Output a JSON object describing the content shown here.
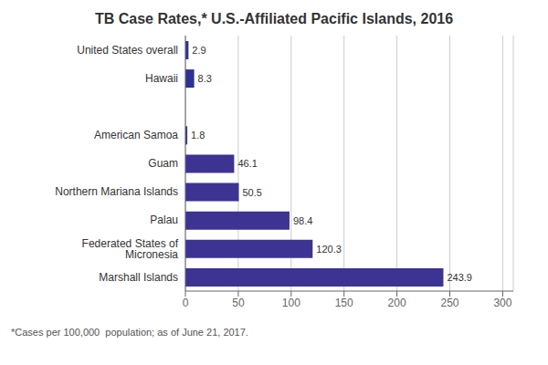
{
  "chart_data": {
    "type": "bar",
    "title": "TB Case Rates,* U.S.-Affiliated Pacific Islands, 2016",
    "orientation": "horizontal",
    "categories": [
      "Marshall Islands",
      "Federated States of Micronesia",
      "Palau",
      "Northern Mariana Islands",
      "Guam",
      "American Samoa",
      null,
      "Hawaii",
      "United States overall"
    ],
    "values": [
      243.9,
      120.3,
      98.4,
      50.5,
      46.1,
      1.8,
      null,
      8.3,
      2.9
    ],
    "colors": [
      "#3d3393",
      "#3d3393",
      "#3d3393",
      "#3d3393",
      "#3d3393",
      "#3d3393",
      "#ffffff",
      "#2e3192",
      "#2e3192"
    ],
    "xlim": [
      0,
      310
    ],
    "xticks": [
      0,
      50,
      100,
      150,
      200,
      250,
      300
    ],
    "grid": true,
    "data_labels": true,
    "annotations": [
      "*Cases per 100,000  population; as of June 21, 2017."
    ]
  }
}
